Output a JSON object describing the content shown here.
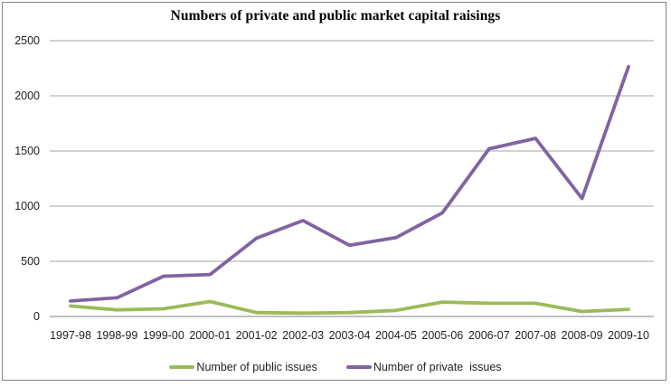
{
  "window": {
    "background": "#ffffff",
    "border_color": "#848484"
  },
  "chart_data": {
    "type": "line",
    "title": "Numbers of private and public market capital raisings",
    "categories": [
      "1997-98",
      "1998-99",
      "1999-00",
      "2000-01",
      "2001-02",
      "2002-03",
      "2003-04",
      "2004-05",
      "2005-06",
      "2006-07",
      "2007-08",
      "2008-09",
      "2009-10"
    ],
    "series": [
      {
        "name": "Number of public issues",
        "color": "#9bbb59",
        "values": [
          95,
          60,
          70,
          135,
          35,
          30,
          35,
          55,
          130,
          120,
          120,
          45,
          65
        ]
      },
      {
        "name": "Number of private  issues",
        "color": "#8064a2",
        "values": [
          140,
          170,
          365,
          380,
          710,
          870,
          645,
          715,
          940,
          1520,
          1615,
          1070,
          2265
        ]
      }
    ],
    "ylim": [
      0,
      2500
    ],
    "y_ticks": [
      0,
      500,
      1000,
      1500,
      2000,
      2500
    ],
    "xlabel": "",
    "ylabel": "",
    "grid": "horizontal",
    "gridline_color": "#a6a6a6",
    "axis_color": "#808080",
    "legend_position": "bottom"
  }
}
